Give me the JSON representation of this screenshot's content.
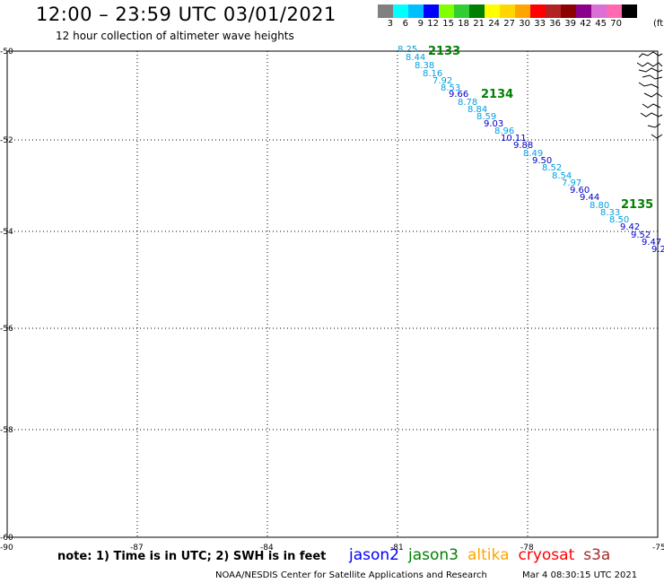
{
  "header": {
    "title": "12:00 – 23:59 UTC 03/01/2021",
    "subtitle": "12 hour collection of altimeter wave heights"
  },
  "legend": {
    "unit": "(ft)",
    "bins": [
      {
        "label": "3",
        "color": "#808080"
      },
      {
        "label": "6",
        "color": "#00ffff"
      },
      {
        "label": "9",
        "color": "#00bfff"
      },
      {
        "label": "12",
        "color": "#0000ff"
      },
      {
        "label": "15",
        "color": "#7fff00"
      },
      {
        "label": "18",
        "color": "#32cd32"
      },
      {
        "label": "21",
        "color": "#008000"
      },
      {
        "label": "24",
        "color": "#ffff00"
      },
      {
        "label": "27",
        "color": "#ffd700"
      },
      {
        "label": "30",
        "color": "#ffa500"
      },
      {
        "label": "33",
        "color": "#ff0000"
      },
      {
        "label": "36",
        "color": "#b22222"
      },
      {
        "label": "39",
        "color": "#8b0000"
      },
      {
        "label": "42",
        "color": "#8b008b"
      },
      {
        "label": "45",
        "color": "#da70d6"
      },
      {
        "label": "70",
        "color": "#ff69b4"
      },
      {
        "label": "",
        "color": "#000000"
      }
    ]
  },
  "map": {
    "lon_ticks": [
      "-90",
      "-87",
      "-84",
      "-81",
      "-78",
      "-75"
    ],
    "lat_ticks": [
      "-50",
      "-52",
      "-54",
      "-56",
      "-58",
      "-60"
    ]
  },
  "observations": [
    {
      "text": "8.25",
      "color": "#00a0e0"
    },
    {
      "text": "8.44",
      "color": "#00a0e0"
    },
    {
      "text": "8.38",
      "color": "#00a0e0"
    },
    {
      "text": "8.16",
      "color": "#00a0e0"
    },
    {
      "text": "7.92",
      "color": "#00a0e0"
    },
    {
      "text": "8.53",
      "color": "#00a0e0"
    },
    {
      "text": "9.66",
      "color": "#0000cc"
    },
    {
      "text": "8.78",
      "color": "#00a0e0"
    },
    {
      "text": "8.84",
      "color": "#00a0e0"
    },
    {
      "text": "8.59",
      "color": "#00a0e0"
    },
    {
      "text": "9.03",
      "color": "#0000cc"
    },
    {
      "text": "8.96",
      "color": "#00a0e0"
    },
    {
      "text": "10.11",
      "color": "#0000cc"
    },
    {
      "text": "9.88",
      "color": "#0000cc"
    },
    {
      "text": "8.49",
      "color": "#00a0e0"
    },
    {
      "text": "9.50",
      "color": "#0000cc"
    },
    {
      "text": "8.52",
      "color": "#00a0e0"
    },
    {
      "text": "8.54",
      "color": "#00a0e0"
    },
    {
      "text": "7.97",
      "color": "#00a0e0"
    },
    {
      "text": "9.60",
      "color": "#0000cc"
    },
    {
      "text": "9.44",
      "color": "#0000cc"
    },
    {
      "text": "8.80",
      "color": "#00a0e0"
    },
    {
      "text": "8.33",
      "color": "#00a0e0"
    },
    {
      "text": "8.50",
      "color": "#00a0e0"
    },
    {
      "text": "9.42",
      "color": "#0000cc"
    },
    {
      "text": "9.52",
      "color": "#0000cc"
    },
    {
      "text": "9.47",
      "color": "#0000cc"
    },
    {
      "text": "9.2",
      "color": "#0000cc"
    }
  ],
  "passes": [
    "2133",
    "2134",
    "2135"
  ],
  "footer": {
    "note": "note: 1) Time is in UTC; 2) SWH is in feet",
    "missions": [
      {
        "name": "jason2",
        "color": "#0000ff"
      },
      {
        "name": "jason3",
        "color": "#008000"
      },
      {
        "name": "altika",
        "color": "#ffa500"
      },
      {
        "name": "cryosat",
        "color": "#ff0000"
      },
      {
        "name": "s3a",
        "color": "#a52a2a"
      }
    ],
    "credit": "NOAA/NESDIS Center for Satellite Applications and Research",
    "timestamp": "Mar  4 08:30:15 UTC 2021"
  }
}
